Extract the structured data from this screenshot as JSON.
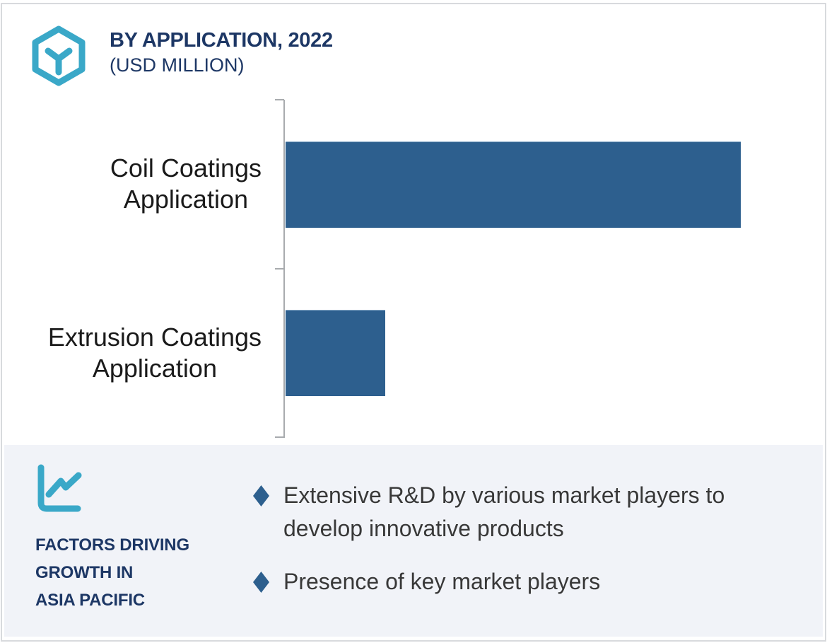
{
  "header": {
    "title": "BY APPLICATION, 2022",
    "subtitle": "(USD MILLION)",
    "brand_icon": "hexagon-cube-icon"
  },
  "chart_data": {
    "type": "bar",
    "orientation": "horizontal",
    "title": "BY APPLICATION, 2022",
    "unit_label": "(USD MILLION)",
    "categories": [
      "Coil Coatings Application",
      "Extrusion Coatings Application"
    ],
    "category_lines": [
      [
        "Coil Coatings",
        "Application"
      ],
      [
        "Extrusion Coatings",
        "Application"
      ]
    ],
    "series": [
      {
        "name": "2022",
        "relative_values": [
          100,
          21.9
        ]
      }
    ],
    "values_shown_on_chart": false,
    "bar_length_pct_of_plot": [
      84.7,
      18.6
    ],
    "bar_color": "#2d5f8e",
    "axis_color": "#a8abae",
    "gridlines": false,
    "legend": "none"
  },
  "factors_panel": {
    "icon": "line-chart-icon",
    "heading_text": "FACTORS DRIVING GROWTH IN ASIA PACIFIC",
    "heading_lines": [
      "FACTORS DRIVING",
      "GROWTH IN",
      "ASIA PACIFIC"
    ],
    "bullet_marker_icon": "diamond-bullet-icon",
    "bullets": [
      "Extensive R&D by various market players to develop innovative products",
      "Presence of key market players"
    ],
    "background_color": "#f1f3f8"
  },
  "colors": {
    "navy": "#1d3765",
    "teal": "#3aa8c8",
    "bar_blue": "#2d5f8e",
    "bullet_text": "#383838",
    "panel_background": "#f1f3f8",
    "axis_gray": "#a8abae",
    "border_gray": "#d8dadd"
  }
}
